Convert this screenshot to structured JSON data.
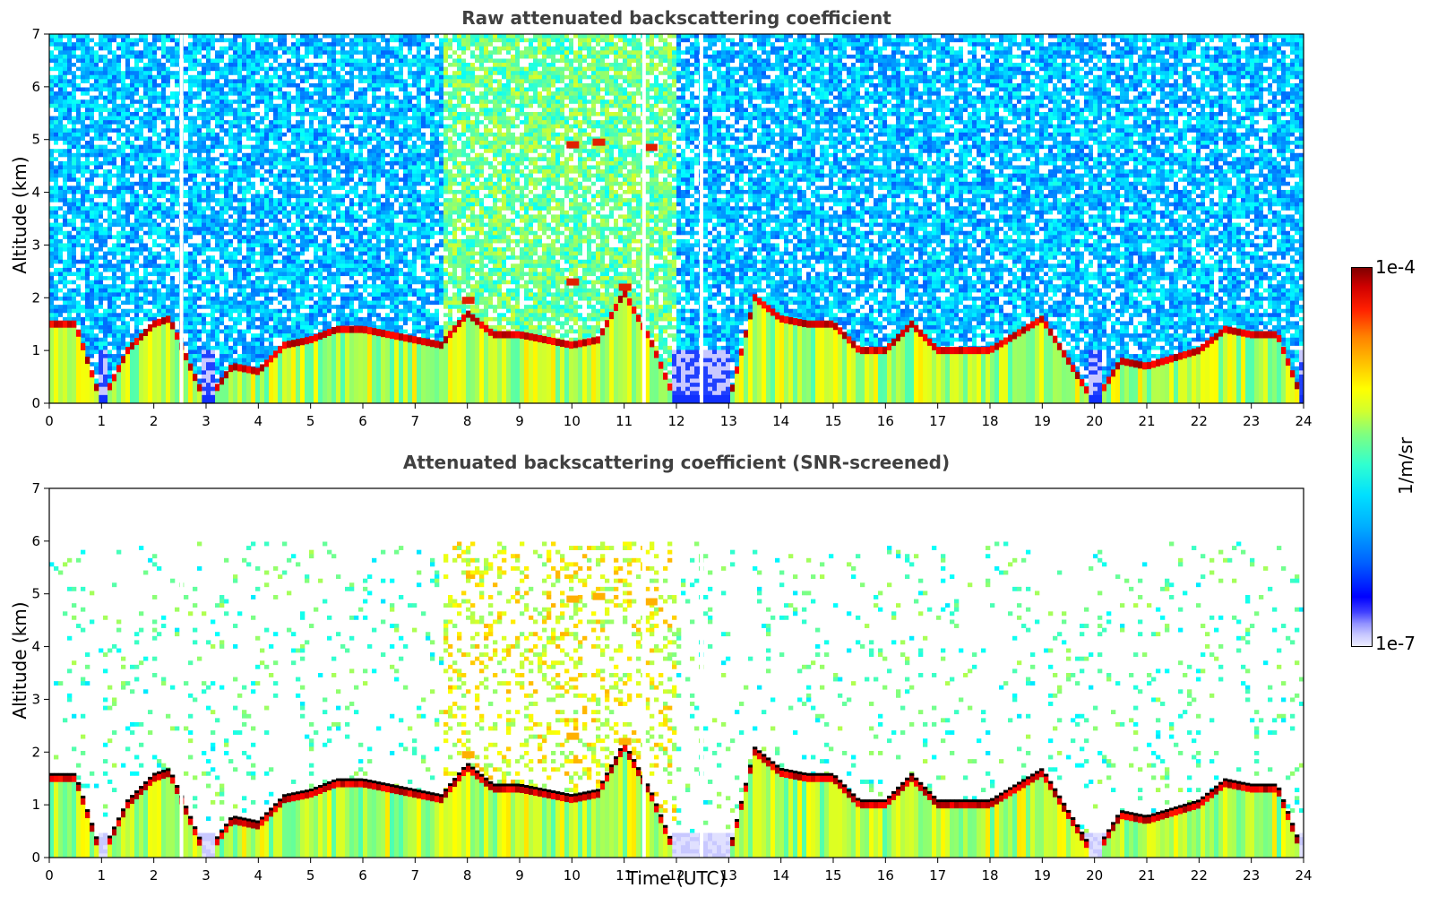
{
  "chart_data": [
    {
      "type": "heatmap",
      "title": "Raw attenuated backscattering coefficient",
      "xlabel": "",
      "ylabel": "Altitude (km)",
      "xlim": [
        0,
        24
      ],
      "ylim": [
        0,
        7
      ],
      "x_ticks": [
        0,
        1,
        2,
        3,
        4,
        5,
        6,
        7,
        8,
        9,
        10,
        11,
        12,
        13,
        14,
        15,
        16,
        17,
        18,
        19,
        20,
        21,
        22,
        23,
        24
      ],
      "y_ticks": [
        0,
        1,
        2,
        3,
        4,
        5,
        6,
        7
      ],
      "background_noise": "speckled blue/cyan everywhere above clouds",
      "data_gaps_hours": [
        2.53,
        11.38,
        12.48
      ],
      "elevated_noise_window_hours": [
        7.5,
        12.0
      ],
      "cloud_base_km": [
        [
          0.0,
          1.5
        ],
        [
          0.5,
          1.5
        ],
        [
          1.0,
          0.0
        ],
        [
          1.5,
          1.0
        ],
        [
          2.0,
          1.5
        ],
        [
          2.3,
          1.6
        ],
        [
          3.0,
          0.0
        ],
        [
          3.5,
          0.7
        ],
        [
          4.0,
          0.6
        ],
        [
          4.5,
          1.1
        ],
        [
          5.0,
          1.2
        ],
        [
          5.5,
          1.4
        ],
        [
          6.0,
          1.4
        ],
        [
          6.5,
          1.3
        ],
        [
          7.0,
          1.2
        ],
        [
          7.5,
          1.1
        ],
        [
          8.0,
          1.7
        ],
        [
          8.5,
          1.3
        ],
        [
          9.0,
          1.3
        ],
        [
          9.5,
          1.2
        ],
        [
          10.0,
          1.1
        ],
        [
          10.5,
          1.2
        ],
        [
          11.0,
          2.1
        ],
        [
          11.5,
          1.2
        ],
        [
          12.0,
          0.0
        ],
        [
          13.0,
          0.0
        ],
        [
          13.5,
          2.0
        ],
        [
          14.0,
          1.6
        ],
        [
          14.5,
          1.5
        ],
        [
          15.0,
          1.5
        ],
        [
          15.5,
          1.0
        ],
        [
          16.0,
          1.0
        ],
        [
          16.5,
          1.5
        ],
        [
          17.0,
          1.0
        ],
        [
          17.5,
          1.0
        ],
        [
          18.0,
          1.0
        ],
        [
          18.5,
          1.3
        ],
        [
          19.0,
          1.6
        ],
        [
          20.0,
          0.0
        ],
        [
          20.5,
          0.8
        ],
        [
          21.0,
          0.7
        ],
        [
          22.0,
          1.0
        ],
        [
          22.5,
          1.4
        ],
        [
          23.0,
          1.3
        ],
        [
          23.5,
          1.3
        ],
        [
          24.0,
          0.0
        ]
      ],
      "high_features_km": [
        [
          10.0,
          4.9
        ],
        [
          10.5,
          4.95
        ],
        [
          11.5,
          4.85
        ],
        [
          11.0,
          2.2
        ],
        [
          10.0,
          2.3
        ],
        [
          8.0,
          1.95
        ]
      ]
    },
    {
      "type": "heatmap",
      "title": "Attenuated backscattering coefficient (SNR-screened)",
      "xlabel": "Time (UTC)",
      "ylabel": "Altitude (km)",
      "xlim": [
        0,
        24
      ],
      "ylim": [
        0,
        7
      ],
      "x_ticks": [
        0,
        1,
        2,
        3,
        4,
        5,
        6,
        7,
        8,
        9,
        10,
        11,
        12,
        13,
        14,
        15,
        16,
        17,
        18,
        19,
        20,
        21,
        22,
        23,
        24
      ],
      "y_ticks": [
        0,
        1,
        2,
        3,
        4,
        5,
        6,
        7
      ],
      "background_noise": "white (screened) with sparse cyan/green speckle",
      "data_gaps_hours": [
        2.53,
        11.38,
        12.48
      ],
      "boundary_layer_top_km": 0.5
    }
  ],
  "colorbar": {
    "label": "1/m/sr",
    "max_label": "1e-4",
    "min_label": "1e-7",
    "colormap": "jet",
    "scale": "log"
  },
  "colors": {
    "frame": "#000000",
    "title_text": "#404040",
    "noise_low": "#1f4fff",
    "noise_high": "#3fd6c8",
    "screened_bg": "#ffffff",
    "low_band": "#c8c8ff"
  }
}
